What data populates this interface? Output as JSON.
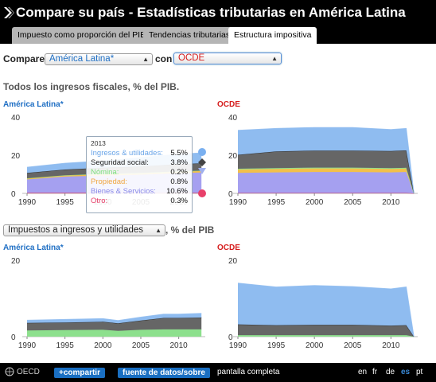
{
  "header": {
    "title": "Compare su país - Estadísticas tributarias en América Latina",
    "tabs": [
      {
        "label": "Impuesto como proporción del PIB",
        "active": false
      },
      {
        "label": "Tendencias tributarias",
        "active": false
      },
      {
        "label": "Estructura impositiva",
        "active": true
      }
    ]
  },
  "controls": {
    "compare_label": "Compare",
    "country_a": "América Latina*",
    "con_label": "con",
    "country_b": "OCDE"
  },
  "section1": {
    "title": "Todos los ingresos fiscales, % del PIB.",
    "left_label": "América Latina*",
    "right_label": "OCDE"
  },
  "section2": {
    "selector": "Impuestos a ingresos y utilidades",
    "suffix": ", % del PIB",
    "left_label": "América Latina*",
    "right_label": "OCDE"
  },
  "tooltip": {
    "year": "2013",
    "rows": [
      {
        "label": "Ingresos & utilidades:",
        "value": "5.5%",
        "color": "#6aa5e8"
      },
      {
        "label": "Seguridad social:",
        "value": "3.8%",
        "color": "#222222"
      },
      {
        "label": "Nómina:",
        "value": "0.2%",
        "color": "#7fe07f"
      },
      {
        "label": "Propiedad:",
        "value": "0.8%",
        "color": "#f0a640"
      },
      {
        "label": "Bienes & Servicios:",
        "value": "10.6%",
        "color": "#8a8ae8"
      },
      {
        "label": "Otro:",
        "value": "0.3%",
        "color": "#e8406a"
      }
    ]
  },
  "colors": {
    "income": "#8fbcf0",
    "social": "#666666",
    "payroll": "#8de08d",
    "property": "#f2c04a",
    "goods": "#a5a0f0",
    "other": "#e8507a",
    "accent": "#1f6fc4"
  },
  "chart_data": [
    {
      "type": "area",
      "title": "América Latina*",
      "x": [
        1990,
        1995,
        2000,
        2005,
        2010,
        2013
      ],
      "ylim": [
        0,
        40
      ],
      "yticks": [
        "0",
        "20",
        "40"
      ],
      "xticks": [
        "1990",
        "1995",
        "2000",
        "2005",
        "2010"
      ],
      "series": [
        {
          "name": "Otro",
          "values": [
            0.3,
            0.3,
            0.3,
            0.3,
            0.3,
            0.3
          ]
        },
        {
          "name": "Bienes & Servicios",
          "values": [
            7.0,
            8.5,
            9.0,
            9.5,
            10.3,
            10.6
          ]
        },
        {
          "name": "Propiedad",
          "values": [
            0.5,
            0.6,
            0.7,
            0.7,
            0.8,
            0.8
          ]
        },
        {
          "name": "Nómina",
          "values": [
            0.1,
            0.1,
            0.2,
            0.2,
            0.2,
            0.2
          ]
        },
        {
          "name": "Seguridad social",
          "values": [
            2.8,
            3.0,
            3.2,
            3.4,
            3.7,
            3.8
          ]
        },
        {
          "name": "Ingresos & utilidades",
          "values": [
            3.0,
            3.3,
            3.6,
            4.6,
            5.2,
            5.5
          ]
        }
      ]
    },
    {
      "type": "area",
      "title": "OCDE",
      "x": [
        1990,
        1995,
        2000,
        2005,
        2010,
        2012,
        2013
      ],
      "ylim": [
        0,
        40
      ],
      "yticks": [
        "0",
        "20",
        "40"
      ],
      "xticks": [
        "1990",
        "1995",
        "2000",
        "2005",
        "2010"
      ],
      "series": [
        {
          "name": "Otro",
          "values": [
            0.2,
            0.2,
            0.2,
            0.2,
            0.2,
            0.2,
            0
          ]
        },
        {
          "name": "Bienes & Servicios",
          "values": [
            10.5,
            10.8,
            11.0,
            11.0,
            10.8,
            11.0,
            0
          ]
        },
        {
          "name": "Propiedad",
          "values": [
            1.8,
            1.8,
            1.9,
            1.9,
            1.8,
            1.8,
            0
          ]
        },
        {
          "name": "Nómina",
          "values": [
            0.4,
            0.4,
            0.4,
            0.4,
            0.4,
            0.4,
            0
          ]
        },
        {
          "name": "Seguridad social",
          "values": [
            7.3,
            8.8,
            8.9,
            8.9,
            9.0,
            9.1,
            0
          ]
        },
        {
          "name": "Ingresos & utilidades",
          "values": [
            12.8,
            12.0,
            12.1,
            12.1,
            11.2,
            11.5,
            0
          ]
        }
      ]
    },
    {
      "type": "area",
      "title": "América Latina*",
      "x": [
        1990,
        1995,
        2000,
        2002,
        2005,
        2008,
        2010,
        2013
      ],
      "ylim": [
        0,
        20
      ],
      "yticks": [
        "0",
        "20"
      ],
      "xticks": [
        "1990",
        "1995",
        "2000",
        "2005",
        "2010"
      ],
      "series": [
        {
          "name": "Nómina",
          "values": [
            1.6,
            1.7,
            1.8,
            1.5,
            1.8,
            1.9,
            1.9,
            1.9
          ]
        },
        {
          "name": "Seguridad social",
          "values": [
            2.0,
            2.0,
            2.1,
            2.0,
            2.4,
            3.0,
            3.0,
            3.1
          ]
        },
        {
          "name": "Ingresos & utilidades",
          "values": [
            0.7,
            0.8,
            0.8,
            0.7,
            0.9,
            1.0,
            1.0,
            1.1
          ]
        }
      ]
    },
    {
      "type": "area",
      "title": "OCDE",
      "x": [
        1990,
        1995,
        2000,
        2005,
        2010,
        2012,
        2013
      ],
      "ylim": [
        0,
        20
      ],
      "yticks": [
        "0",
        "20"
      ],
      "xticks": [
        "1990",
        "1995",
        "2000",
        "2005",
        "2010"
      ],
      "series": [
        {
          "name": "Nómina",
          "values": [
            0.4,
            0.4,
            0.4,
            0.4,
            0.4,
            0.4,
            0
          ]
        },
        {
          "name": "Seguridad social",
          "values": [
            2.8,
            2.6,
            2.7,
            2.7,
            2.5,
            2.6,
            0
          ]
        },
        {
          "name": "Ingresos & utilidades",
          "values": [
            10.8,
            10.0,
            10.3,
            10.0,
            9.6,
            10.0,
            0
          ]
        }
      ]
    }
  ],
  "footer": {
    "oecd": "OECD",
    "share": "+compartir",
    "source": "fuente de datos/sobre",
    "fullscreen": "pantalla completa",
    "languages": [
      {
        "code": "en",
        "active": false
      },
      {
        "code": "fr",
        "active": false
      },
      {
        "code": "de",
        "active": false
      },
      {
        "code": "es",
        "active": true
      },
      {
        "code": "pt",
        "active": false
      }
    ]
  }
}
